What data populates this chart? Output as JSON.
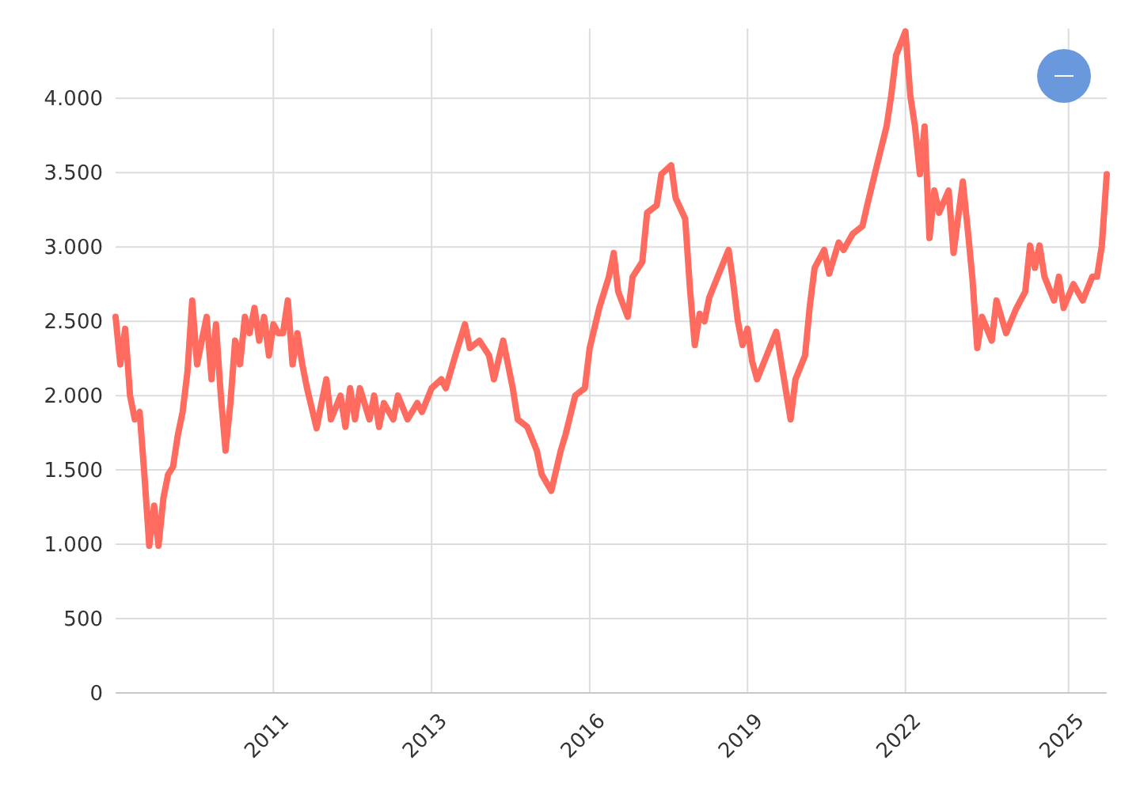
{
  "chart_data": {
    "type": "line",
    "xlim": [
      "2008-06",
      "2025-09"
    ],
    "ylim": [
      0,
      4470
    ],
    "xticks": [
      {
        "value": "2011-03",
        "label": "2011"
      },
      {
        "value": "2013-12",
        "label": "2013"
      },
      {
        "value": "2016-09",
        "label": "2016"
      },
      {
        "value": "2019-06",
        "label": "2019"
      },
      {
        "value": "2022-03",
        "label": "2022"
      },
      {
        "value": "2025-01",
        "label": "2025"
      }
    ],
    "yticks": [
      0,
      500,
      {
        "value": 1000,
        "label": "1.000"
      },
      {
        "value": 1500,
        "label": "1.500"
      },
      {
        "value": 2000,
        "label": "2.000"
      },
      {
        "value": 2500,
        "label": "2.500"
      },
      {
        "value": 3000,
        "label": "3.000"
      },
      {
        "value": 3500,
        "label": "3.500"
      },
      {
        "value": 4000,
        "label": "4.000"
      }
    ],
    "grid": true,
    "marker": "none",
    "line_style": "solid",
    "x": [
      "2008-06",
      "2008-07",
      "2008-08",
      "2008-09",
      "2008-10",
      "2008-11",
      "2008-12",
      "2009-01",
      "2009-02",
      "2009-03",
      "2009-04",
      "2009-05",
      "2009-06",
      "2009-07",
      "2009-08",
      "2009-09",
      "2009-10",
      "2009-11",
      "2009-12",
      "2010-01",
      "2010-02",
      "2010-03",
      "2010-04",
      "2010-05",
      "2010-06",
      "2010-07",
      "2010-08",
      "2010-09",
      "2010-10",
      "2010-11",
      "2010-12",
      "2011-01",
      "2011-02",
      "2011-03",
      "2011-04",
      "2011-05",
      "2011-06",
      "2011-07",
      "2011-08",
      "2011-09",
      "2011-10",
      "2011-12",
      "2012-01",
      "2012-02",
      "2012-03",
      "2012-05",
      "2012-06",
      "2012-07",
      "2012-08",
      "2012-09",
      "2012-11",
      "2012-12",
      "2013-01",
      "2013-02",
      "2013-04",
      "2013-05",
      "2013-07",
      "2013-09",
      "2013-10",
      "2013-12",
      "2014-02",
      "2014-03",
      "2014-05",
      "2014-07",
      "2014-08",
      "2014-10",
      "2014-12",
      "2015-01",
      "2015-03",
      "2015-05",
      "2015-06",
      "2015-08",
      "2015-10",
      "2015-11",
      "2016-01",
      "2016-03",
      "2016-04",
      "2016-06",
      "2016-08",
      "2016-09",
      "2016-11",
      "2017-01",
      "2017-02",
      "2017-03",
      "2017-05",
      "2017-06",
      "2017-08",
      "2017-09",
      "2017-11",
      "2017-12",
      "2018-02",
      "2018-03",
      "2018-05",
      "2018-06",
      "2018-07",
      "2018-08",
      "2018-09",
      "2018-10",
      "2018-12",
      "2019-02",
      "2019-03",
      "2019-04",
      "2019-05",
      "2019-06",
      "2019-07",
      "2019-08",
      "2019-10",
      "2019-12",
      "2020-01",
      "2020-03",
      "2020-04",
      "2020-06",
      "2020-07",
      "2020-08",
      "2020-10",
      "2020-11",
      "2021-01",
      "2021-02",
      "2021-04",
      "2021-06",
      "2021-07",
      "2021-09",
      "2021-11",
      "2021-12",
      "2022-01",
      "2022-03",
      "2022-04",
      "2022-05",
      "2022-06",
      "2022-07",
      "2022-08",
      "2022-09",
      "2022-10",
      "2022-12",
      "2023-01",
      "2023-03",
      "2023-04",
      "2023-05",
      "2023-06",
      "2023-07",
      "2023-09",
      "2023-10",
      "2023-12",
      "2024-02",
      "2024-04",
      "2024-05",
      "2024-06",
      "2024-07",
      "2024-08",
      "2024-10",
      "2024-11",
      "2024-12",
      "2025-02",
      "2025-04",
      "2025-06",
      "2025-07",
      "2025-08",
      "2025-09"
    ],
    "series": [
      {
        "color": "#ff6b5e",
        "values": [
          2530,
          2210,
          2450,
          2000,
          1840,
          1890,
          1470,
          990,
          1260,
          990,
          1310,
          1470,
          1520,
          1730,
          1890,
          2160,
          2640,
          2210,
          2370,
          2530,
          2110,
          2480,
          2000,
          1630,
          1950,
          2370,
          2210,
          2530,
          2420,
          2590,
          2370,
          2530,
          2270,
          2480,
          2420,
          2420,
          2640,
          2210,
          2420,
          2210,
          2050,
          1780,
          1950,
          2110,
          1840,
          2000,
          1790,
          2050,
          1840,
          2050,
          1840,
          2000,
          1790,
          1950,
          1840,
          2000,
          1840,
          1950,
          1890,
          2050,
          2110,
          2050,
          2270,
          2480,
          2320,
          2370,
          2270,
          2110,
          2370,
          2050,
          1840,
          1790,
          1630,
          1470,
          1360,
          1630,
          1740,
          2000,
          2050,
          2320,
          2590,
          2800,
          2960,
          2700,
          2530,
          2800,
          2900,
          3230,
          3280,
          3490,
          3550,
          3330,
          3190,
          2710,
          2340,
          2550,
          2500,
          2660,
          2820,
          2980,
          2770,
          2500,
          2340,
          2450,
          2230,
          2110,
          2270,
          2430,
          2230,
          1840,
          2110,
          2270,
          2600,
          2860,
          2980,
          2820,
          3030,
          2980,
          3090,
          3140,
          3280,
          3550,
          3810,
          4020,
          4290,
          4450,
          4020,
          3810,
          3490,
          3810,
          3060,
          3380,
          3230,
          3380,
          2960,
          3440,
          3120,
          2790,
          2320,
          2530,
          2370,
          2640,
          2420,
          2580,
          2700,
          3010,
          2860,
          3010,
          2800,
          2640,
          2800,
          2590,
          2750,
          2640,
          2800,
          2800,
          3010,
          3490
        ]
      }
    ]
  }
}
